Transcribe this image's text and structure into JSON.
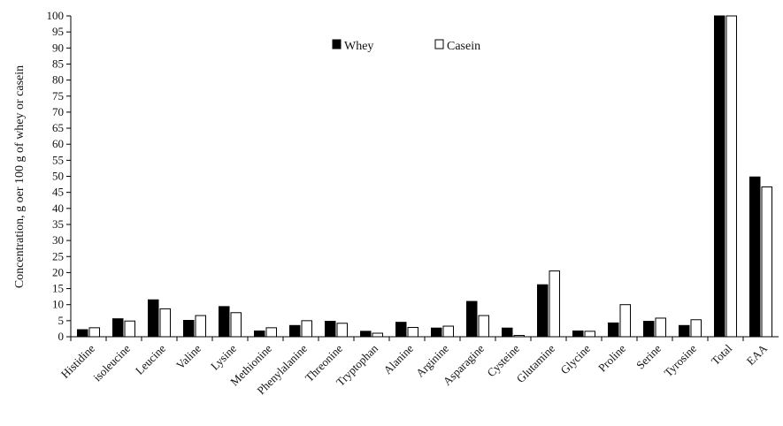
{
  "chart_data": {
    "type": "bar",
    "title": "",
    "xlabel": "",
    "ylabel": "Concentration, g oer 100 g of whey or casein",
    "ylim": [
      0,
      100
    ],
    "yticks": [
      0,
      5,
      10,
      15,
      20,
      25,
      30,
      35,
      40,
      45,
      50,
      55,
      60,
      65,
      70,
      75,
      80,
      85,
      90,
      95,
      100
    ],
    "grid": false,
    "legend_position": "top-center",
    "categories": [
      "Histidine",
      "isoleucine",
      "Leucine",
      "Valine",
      "Lysine",
      "Methionine",
      "Phenylalanine",
      "Threonine",
      "Tryptophan",
      "Alanine",
      "Arginine",
      "Asparagine",
      "Cysteine",
      "Glutamine",
      "Glycine",
      "Proline",
      "Serine",
      "Tyrosine",
      "Total",
      "EAA"
    ],
    "series": [
      {
        "name": "Whey",
        "color": "#000000",
        "values": [
          2.2,
          5.6,
          11.5,
          5.1,
          9.4,
          1.8,
          3.5,
          4.8,
          1.7,
          4.5,
          2.7,
          11.0,
          2.7,
          16.2,
          1.8,
          4.3,
          4.8,
          3.5,
          100,
          49.8
        ]
      },
      {
        "name": "Casein",
        "color": "#ffffff",
        "values": [
          2.8,
          4.9,
          8.7,
          6.6,
          7.5,
          2.8,
          5.0,
          4.2,
          1.1,
          2.9,
          3.3,
          6.6,
          0.4,
          20.5,
          1.7,
          10.0,
          5.8,
          5.3,
          100,
          46.7
        ]
      }
    ]
  }
}
